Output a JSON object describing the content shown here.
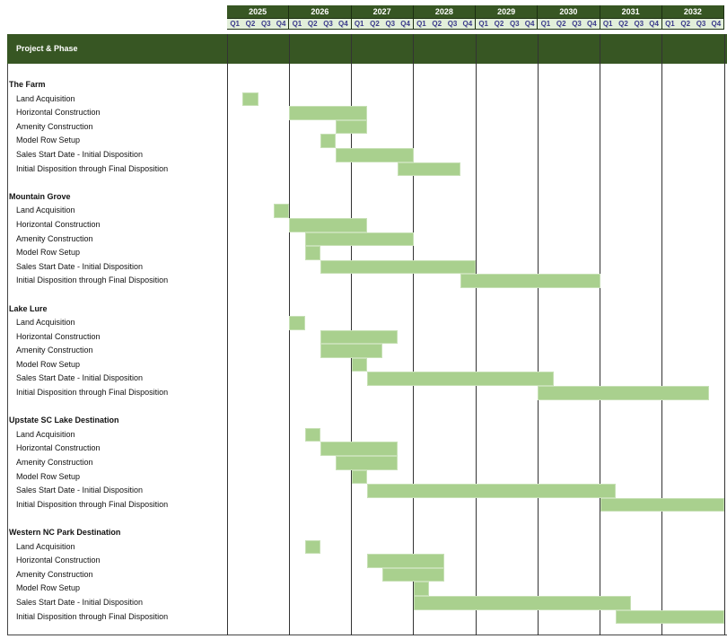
{
  "header": {
    "column_label": "Project & Phase",
    "years": [
      "2025",
      "2026",
      "2027",
      "2028",
      "2029",
      "2030",
      "2031",
      "2032"
    ],
    "quarters": [
      "Q1",
      "Q2",
      "Q3",
      "Q4"
    ]
  },
  "colors": {
    "header_bg": "#375623",
    "quarter_bg": "#e2efda",
    "bar": "#a9d08e"
  },
  "chart_data": {
    "type": "gantt",
    "title": "Project & Phase",
    "time_axis": "quarters 2025 Q1 – 2032 Q4 (index 0 = 2025 Q1)",
    "projects": [
      {
        "name": "The Farm",
        "phases": [
          {
            "name": "Land Acquisition",
            "start": 1,
            "end": 1
          },
          {
            "name": "Horizontal Construction",
            "start": 4,
            "end": 8
          },
          {
            "name": "Amenity Construction",
            "start": 7,
            "end": 8
          },
          {
            "name": "Model Row Setup",
            "start": 6,
            "end": 6
          },
          {
            "name": "Sales Start Date - Initial Disposition",
            "start": 7,
            "end": 11
          },
          {
            "name": "Initial Disposition through Final Disposition",
            "start": 11,
            "end": 14
          }
        ]
      },
      {
        "name": "Mountain Grove",
        "phases": [
          {
            "name": "Land Acquisition",
            "start": 3,
            "end": 3
          },
          {
            "name": "Horizontal Construction",
            "start": 4,
            "end": 8
          },
          {
            "name": "Amenity Construction",
            "start": 5,
            "end": 11
          },
          {
            "name": "Model Row Setup",
            "start": 5,
            "end": 5
          },
          {
            "name": "Sales Start Date - Initial Disposition",
            "start": 6,
            "end": 15
          },
          {
            "name": "Initial Disposition through Final Disposition",
            "start": 15,
            "end": 23
          }
        ]
      },
      {
        "name": "Lake Lure",
        "phases": [
          {
            "name": "Land Acquisition",
            "start": 4,
            "end": 4
          },
          {
            "name": "Horizontal Construction",
            "start": 6,
            "end": 10
          },
          {
            "name": "Amenity Construction",
            "start": 6,
            "end": 9
          },
          {
            "name": "Model Row Setup",
            "start": 8,
            "end": 8
          },
          {
            "name": "Sales Start Date - Initial Disposition",
            "start": 9,
            "end": 20
          },
          {
            "name": "Initial Disposition through Final Disposition",
            "start": 20,
            "end": 30
          }
        ]
      },
      {
        "name": "Upstate SC Lake Destination",
        "phases": [
          {
            "name": "Land Acquisition",
            "start": 5,
            "end": 5
          },
          {
            "name": "Horizontal Construction",
            "start": 6,
            "end": 10
          },
          {
            "name": "Amenity Construction",
            "start": 7,
            "end": 10
          },
          {
            "name": "Model Row Setup",
            "start": 8,
            "end": 8
          },
          {
            "name": "Sales Start Date - Initial Disposition",
            "start": 9,
            "end": 24
          },
          {
            "name": "Initial Disposition through Final Disposition",
            "start": 24,
            "end": 31
          }
        ]
      },
      {
        "name": "Western NC Park Destination",
        "phases": [
          {
            "name": "Land Acquisition",
            "start": 5,
            "end": 5
          },
          {
            "name": "Horizontal Construction",
            "start": 9,
            "end": 13
          },
          {
            "name": "Amenity Construction",
            "start": 10,
            "end": 13
          },
          {
            "name": "Model Row Setup",
            "start": 12,
            "end": 12
          },
          {
            "name": "Sales Start Date - Initial Disposition",
            "start": 12,
            "end": 25
          },
          {
            "name": "Initial Disposition through Final Disposition",
            "start": 25,
            "end": 31
          }
        ]
      }
    ]
  }
}
